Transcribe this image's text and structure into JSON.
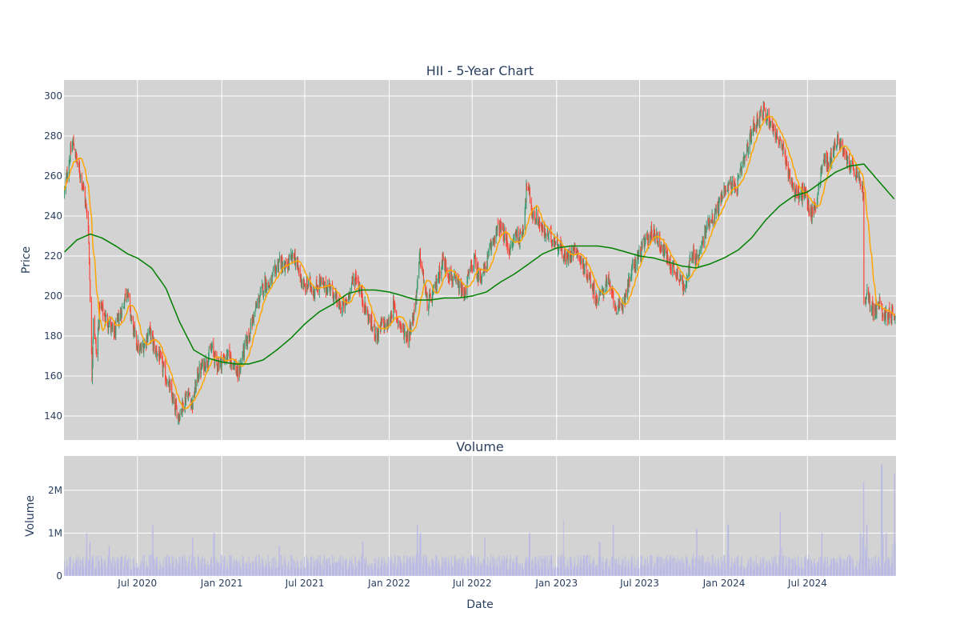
{
  "chart_data": [
    {
      "type": "candlestick",
      "title": "HII - 5-Year Chart",
      "ylabel": "Price",
      "ylim": [
        128,
        308
      ],
      "yticks": [
        140,
        160,
        180,
        200,
        220,
        240,
        260,
        280,
        300
      ],
      "xlim": [
        "2020-01-23",
        "2025-01-10"
      ],
      "grid": true,
      "colors": {
        "up": "#3d9970",
        "down": "#ff4136",
        "ma_short": "#ffa500",
        "ma_long": "#008000",
        "plot_bg": "#d3d3d3",
        "grid": "#ffffff",
        "volume": "#b9b9e6"
      },
      "close_points": [
        [
          "2020-01-24",
          252
        ],
        [
          "2020-02-05",
          270
        ],
        [
          "2020-02-12",
          277
        ],
        [
          "2020-02-21",
          266
        ],
        [
          "2020-03-02",
          258
        ],
        [
          "2020-03-09",
          248
        ],
        [
          "2020-03-16",
          235
        ],
        [
          "2020-03-19",
          210
        ],
        [
          "2020-03-24",
          160
        ],
        [
          "2020-03-27",
          190
        ],
        [
          "2020-04-03",
          170
        ],
        [
          "2020-04-10",
          196
        ],
        [
          "2020-04-20",
          190
        ],
        [
          "2020-05-01",
          186
        ],
        [
          "2020-05-11",
          180
        ],
        [
          "2020-05-20",
          188
        ],
        [
          "2020-06-01",
          196
        ],
        [
          "2020-06-08",
          205
        ],
        [
          "2020-06-15",
          192
        ],
        [
          "2020-06-25",
          180
        ],
        [
          "2020-07-06",
          172
        ],
        [
          "2020-07-16",
          176
        ],
        [
          "2020-07-27",
          183
        ],
        [
          "2020-08-07",
          174
        ],
        [
          "2020-08-17",
          170
        ],
        [
          "2020-08-27",
          163
        ],
        [
          "2020-09-08",
          155
        ],
        [
          "2020-09-18",
          146
        ],
        [
          "2020-09-29",
          140
        ],
        [
          "2020-10-09",
          146
        ],
        [
          "2020-10-19",
          152
        ],
        [
          "2020-10-29",
          146
        ],
        [
          "2020-11-09",
          160
        ],
        [
          "2020-11-20",
          165
        ],
        [
          "2020-12-01",
          168
        ],
        [
          "2020-12-10",
          174
        ],
        [
          "2020-12-21",
          166
        ],
        [
          "2021-01-04",
          168
        ],
        [
          "2021-01-14",
          170
        ],
        [
          "2021-01-26",
          167
        ],
        [
          "2021-02-05",
          160
        ],
        [
          "2021-02-17",
          172
        ],
        [
          "2021-03-01",
          180
        ],
        [
          "2021-03-11",
          190
        ],
        [
          "2021-03-23",
          198
        ],
        [
          "2021-04-05",
          207
        ],
        [
          "2021-04-15",
          205
        ],
        [
          "2021-04-27",
          212
        ],
        [
          "2021-05-07",
          218
        ],
        [
          "2021-05-18",
          213
        ],
        [
          "2021-05-28",
          217
        ],
        [
          "2021-06-08",
          220
        ],
        [
          "2021-06-18",
          212
        ],
        [
          "2021-06-30",
          204
        ],
        [
          "2021-07-12",
          206
        ],
        [
          "2021-07-22",
          202
        ],
        [
          "2021-08-03",
          207
        ],
        [
          "2021-08-13",
          204
        ],
        [
          "2021-08-25",
          205
        ],
        [
          "2021-09-07",
          198
        ],
        [
          "2021-09-17",
          194
        ],
        [
          "2021-09-29",
          196
        ],
        [
          "2021-10-11",
          206
        ],
        [
          "2021-10-21",
          210
        ],
        [
          "2021-11-02",
          200
        ],
        [
          "2021-11-12",
          192
        ],
        [
          "2021-11-24",
          185
        ],
        [
          "2021-12-06",
          180
        ],
        [
          "2021-12-16",
          186
        ],
        [
          "2021-12-29",
          185
        ],
        [
          "2022-01-10",
          195
        ],
        [
          "2022-01-20",
          188
        ],
        [
          "2022-02-01",
          182
        ],
        [
          "2022-02-11",
          180
        ],
        [
          "2022-02-23",
          190
        ],
        [
          "2022-03-03",
          205
        ],
        [
          "2022-03-09",
          220
        ],
        [
          "2022-03-17",
          208
        ],
        [
          "2022-03-25",
          196
        ],
        [
          "2022-04-06",
          200
        ],
        [
          "2022-04-18",
          210
        ],
        [
          "2022-04-28",
          218
        ],
        [
          "2022-05-10",
          212
        ],
        [
          "2022-05-20",
          208
        ],
        [
          "2022-06-01",
          205
        ],
        [
          "2022-06-13",
          200
        ],
        [
          "2022-06-23",
          210
        ],
        [
          "2022-07-05",
          218
        ],
        [
          "2022-07-15",
          210
        ],
        [
          "2022-07-27",
          212
        ],
        [
          "2022-08-08",
          222
        ],
        [
          "2022-08-18",
          230
        ],
        [
          "2022-08-30",
          235
        ],
        [
          "2022-09-12",
          228
        ],
        [
          "2022-09-22",
          222
        ],
        [
          "2022-10-04",
          232
        ],
        [
          "2022-10-14",
          228
        ],
        [
          "2022-10-21",
          236
        ],
        [
          "2022-10-28",
          256
        ],
        [
          "2022-11-03",
          250
        ],
        [
          "2022-11-10",
          240
        ],
        [
          "2022-11-22",
          238
        ],
        [
          "2022-12-02",
          232
        ],
        [
          "2022-12-14",
          230
        ],
        [
          "2022-12-27",
          228
        ],
        [
          "2023-01-09",
          225
        ],
        [
          "2023-01-20",
          218
        ],
        [
          "2023-02-01",
          222
        ],
        [
          "2023-02-13",
          224
        ],
        [
          "2023-02-24",
          216
        ],
        [
          "2023-03-08",
          212
        ],
        [
          "2023-03-20",
          205
        ],
        [
          "2023-03-30",
          198
        ],
        [
          "2023-04-11",
          202
        ],
        [
          "2023-04-21",
          208
        ],
        [
          "2023-05-03",
          200
        ],
        [
          "2023-05-15",
          192
        ],
        [
          "2023-05-25",
          196
        ],
        [
          "2023-06-06",
          206
        ],
        [
          "2023-06-16",
          214
        ],
        [
          "2023-06-28",
          220
        ],
        [
          "2023-07-11",
          226
        ],
        [
          "2023-07-21",
          230
        ],
        [
          "2023-08-02",
          232
        ],
        [
          "2023-08-14",
          226
        ],
        [
          "2023-08-24",
          222
        ],
        [
          "2023-09-06",
          216
        ],
        [
          "2023-09-18",
          212
        ],
        [
          "2023-09-28",
          210
        ],
        [
          "2023-10-06",
          202
        ],
        [
          "2023-10-12",
          212
        ],
        [
          "2023-10-25",
          220
        ],
        [
          "2023-11-06",
          218
        ],
        [
          "2023-11-16",
          228
        ],
        [
          "2023-11-29",
          238
        ],
        [
          "2023-12-11",
          240
        ],
        [
          "2023-12-21",
          246
        ],
        [
          "2024-01-03",
          254
        ],
        [
          "2024-01-16",
          256
        ],
        [
          "2024-01-26",
          252
        ],
        [
          "2024-02-07",
          262
        ],
        [
          "2024-02-20",
          272
        ],
        [
          "2024-03-01",
          282
        ],
        [
          "2024-03-13",
          288
        ],
        [
          "2024-03-25",
          292
        ],
        [
          "2024-04-05",
          290
        ],
        [
          "2024-04-17",
          284
        ],
        [
          "2024-04-29",
          278
        ],
        [
          "2024-05-09",
          272
        ],
        [
          "2024-05-21",
          262
        ],
        [
          "2024-06-03",
          252
        ],
        [
          "2024-06-13",
          250
        ],
        [
          "2024-06-25",
          252
        ],
        [
          "2024-07-08",
          240
        ],
        [
          "2024-07-19",
          246
        ],
        [
          "2024-07-31",
          262
        ],
        [
          "2024-08-07",
          270
        ],
        [
          "2024-08-16",
          265
        ],
        [
          "2024-08-28",
          275
        ],
        [
          "2024-09-09",
          278
        ],
        [
          "2024-09-19",
          270
        ],
        [
          "2024-10-01",
          266
        ],
        [
          "2024-10-11",
          262
        ],
        [
          "2024-10-23",
          258
        ],
        [
          "2024-10-31",
          250
        ],
        [
          "2024-11-01",
          195
        ],
        [
          "2024-11-08",
          200
        ],
        [
          "2024-11-15",
          196
        ],
        [
          "2024-11-25",
          192
        ],
        [
          "2024-12-05",
          196
        ],
        [
          "2024-12-16",
          190
        ],
        [
          "2024-12-27",
          192
        ],
        [
          "2025-01-08",
          190
        ]
      ],
      "ma_long_points": [
        [
          "2020-01-24",
          222
        ],
        [
          "2020-02-20",
          228
        ],
        [
          "2020-03-20",
          231
        ],
        [
          "2020-04-15",
          229
        ],
        [
          "2020-05-15",
          225
        ],
        [
          "2020-06-10",
          221
        ],
        [
          "2020-07-01",
          219
        ],
        [
          "2020-08-01",
          214
        ],
        [
          "2020-09-01",
          204
        ],
        [
          "2020-10-01",
          187
        ],
        [
          "2020-11-01",
          173
        ],
        [
          "2020-12-01",
          169
        ],
        [
          "2021-01-01",
          167
        ],
        [
          "2021-02-01",
          166
        ],
        [
          "2021-03-01",
          166
        ],
        [
          "2021-04-01",
          168
        ],
        [
          "2021-05-01",
          173
        ],
        [
          "2021-06-01",
          179
        ],
        [
          "2021-07-01",
          186
        ],
        [
          "2021-08-01",
          192
        ],
        [
          "2021-09-01",
          196
        ],
        [
          "2021-10-01",
          201
        ],
        [
          "2021-11-01",
          203
        ],
        [
          "2021-12-01",
          203
        ],
        [
          "2022-01-01",
          202
        ],
        [
          "2022-02-01",
          200
        ],
        [
          "2022-03-01",
          198
        ],
        [
          "2022-04-01",
          198
        ],
        [
          "2022-05-01",
          199
        ],
        [
          "2022-06-01",
          199
        ],
        [
          "2022-07-01",
          200
        ],
        [
          "2022-08-01",
          202
        ],
        [
          "2022-09-01",
          207
        ],
        [
          "2022-10-01",
          211
        ],
        [
          "2022-11-01",
          216
        ],
        [
          "2022-12-01",
          221
        ],
        [
          "2023-01-01",
          224
        ],
        [
          "2023-02-01",
          225
        ],
        [
          "2023-03-01",
          225
        ],
        [
          "2023-04-01",
          225
        ],
        [
          "2023-05-01",
          224
        ],
        [
          "2023-06-01",
          222
        ],
        [
          "2023-07-01",
          220
        ],
        [
          "2023-08-01",
          219
        ],
        [
          "2023-09-01",
          217
        ],
        [
          "2023-10-01",
          215
        ],
        [
          "2023-11-01",
          214
        ],
        [
          "2023-12-01",
          216
        ],
        [
          "2024-01-01",
          219
        ],
        [
          "2024-02-01",
          223
        ],
        [
          "2024-03-01",
          229
        ],
        [
          "2024-04-01",
          238
        ],
        [
          "2024-05-01",
          245
        ],
        [
          "2024-06-01",
          250
        ],
        [
          "2024-07-01",
          252
        ],
        [
          "2024-08-01",
          257
        ],
        [
          "2024-09-01",
          262
        ],
        [
          "2024-10-01",
          265
        ],
        [
          "2024-11-01",
          266
        ],
        [
          "2024-12-01",
          258
        ],
        [
          "2025-01-08",
          248
        ]
      ]
    },
    {
      "type": "bar",
      "title": "Volume",
      "ylabel": "Volume",
      "xlabel": "Date",
      "ylim": [
        0,
        2800000
      ],
      "yticks": [
        0,
        1000000,
        2000000
      ],
      "ytick_labels": [
        "0",
        "1M",
        "2M"
      ],
      "xticks": [
        "2020-07-01",
        "2021-01-01",
        "2021-07-01",
        "2022-01-01",
        "2022-07-01",
        "2023-01-01",
        "2023-07-01",
        "2024-01-01",
        "2024-07-01"
      ],
      "xtick_labels": [
        "Jul 2020",
        "Jan 2021",
        "Jul 2021",
        "Jan 2022",
        "Jul 2022",
        "Jan 2023",
        "Jul 2023",
        "Jan 2024",
        "Jul 2024"
      ],
      "typical_volume": 400000,
      "volume_spikes": [
        [
          "2020-03-13",
          1000000
        ],
        [
          "2020-03-20",
          800000
        ],
        [
          "2020-05-01",
          700000
        ],
        [
          "2020-08-03",
          1200000
        ],
        [
          "2020-10-30",
          900000
        ],
        [
          "2020-12-15",
          1000000
        ],
        [
          "2021-05-07",
          700000
        ],
        [
          "2021-11-05",
          800000
        ],
        [
          "2022-03-04",
          1200000
        ],
        [
          "2022-03-10",
          1000000
        ],
        [
          "2022-07-29",
          900000
        ],
        [
          "2022-11-03",
          1000000
        ],
        [
          "2023-01-15",
          1300000
        ],
        [
          "2023-04-05",
          800000
        ],
        [
          "2023-05-05",
          1200000
        ],
        [
          "2023-11-03",
          1100000
        ],
        [
          "2024-01-10",
          1200000
        ],
        [
          "2024-05-03",
          1500000
        ],
        [
          "2024-08-02",
          1000000
        ],
        [
          "2024-10-25",
          1000000
        ],
        [
          "2024-11-01",
          2200000
        ],
        [
          "2024-11-08",
          1200000
        ],
        [
          "2024-12-10",
          2600000
        ],
        [
          "2024-12-20",
          1000000
        ],
        [
          "2025-01-06",
          2400000
        ]
      ]
    }
  ]
}
